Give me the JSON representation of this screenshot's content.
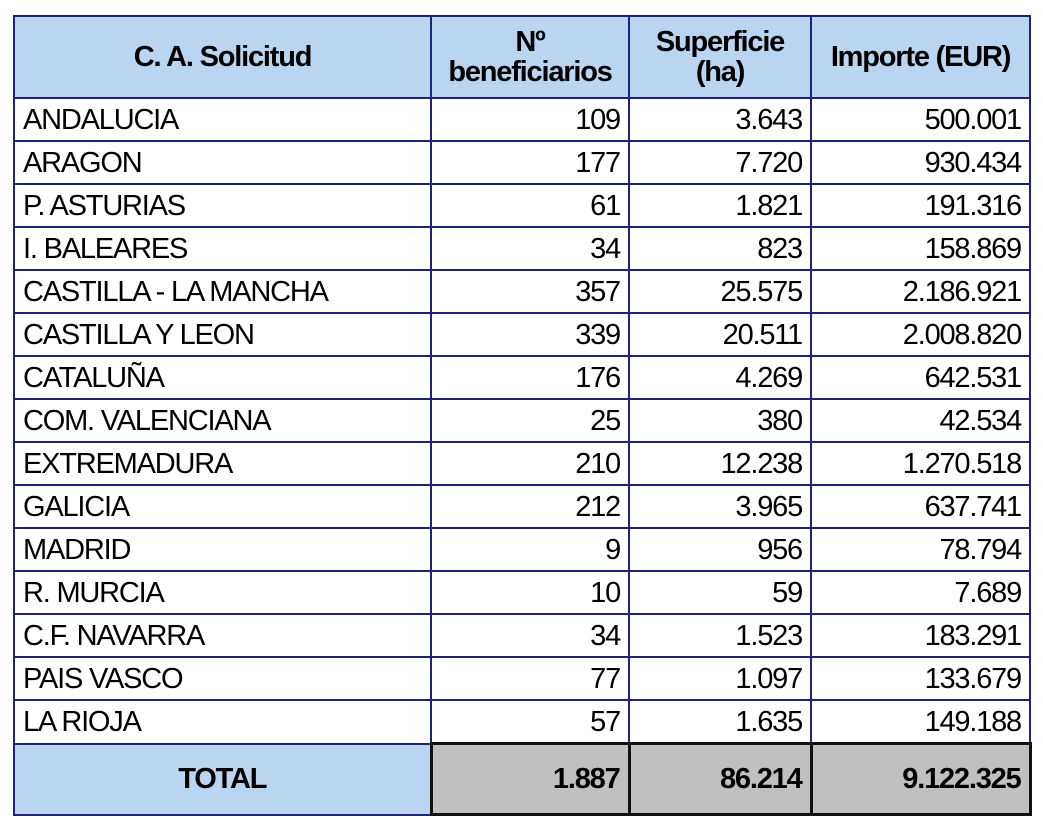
{
  "table": {
    "header": [
      "C. A. Solicitud",
      "Nº beneficiarios",
      "Superficie (ha)",
      "Importe (EUR)"
    ],
    "rows": [
      [
        "ANDALUCIA",
        "109",
        "3.643",
        "500.001"
      ],
      [
        "ARAGON",
        "177",
        "7.720",
        "930.434"
      ],
      [
        "P. ASTURIAS",
        "61",
        "1.821",
        "191.316"
      ],
      [
        "I. BALEARES",
        "34",
        "823",
        "158.869"
      ],
      [
        "CASTILLA - LA MANCHA",
        "357",
        "25.575",
        "2.186.921"
      ],
      [
        "CASTILLA Y LEON",
        "339",
        "20.511",
        "2.008.820"
      ],
      [
        "CATALUÑA",
        "176",
        "4.269",
        "642.531"
      ],
      [
        "COM. VALENCIANA",
        "25",
        "380",
        "42.534"
      ],
      [
        "EXTREMADURA",
        "210",
        "12.238",
        "1.270.518"
      ],
      [
        "GALICIA",
        "212",
        "3.965",
        "637.741"
      ],
      [
        "MADRID",
        "9",
        "956",
        "78.794"
      ],
      [
        "R. MURCIA",
        "10",
        "59",
        "7.689"
      ],
      [
        "C.F. NAVARRA",
        "34",
        "1.523",
        "183.291"
      ],
      [
        "PAIS VASCO",
        "77",
        "1.097",
        "133.679"
      ],
      [
        "LA RIOJA",
        "57",
        "1.635",
        "149.188"
      ]
    ],
    "total": [
      "TOTAL",
      "1.887",
      "86.214",
      "9.122.325"
    ]
  }
}
